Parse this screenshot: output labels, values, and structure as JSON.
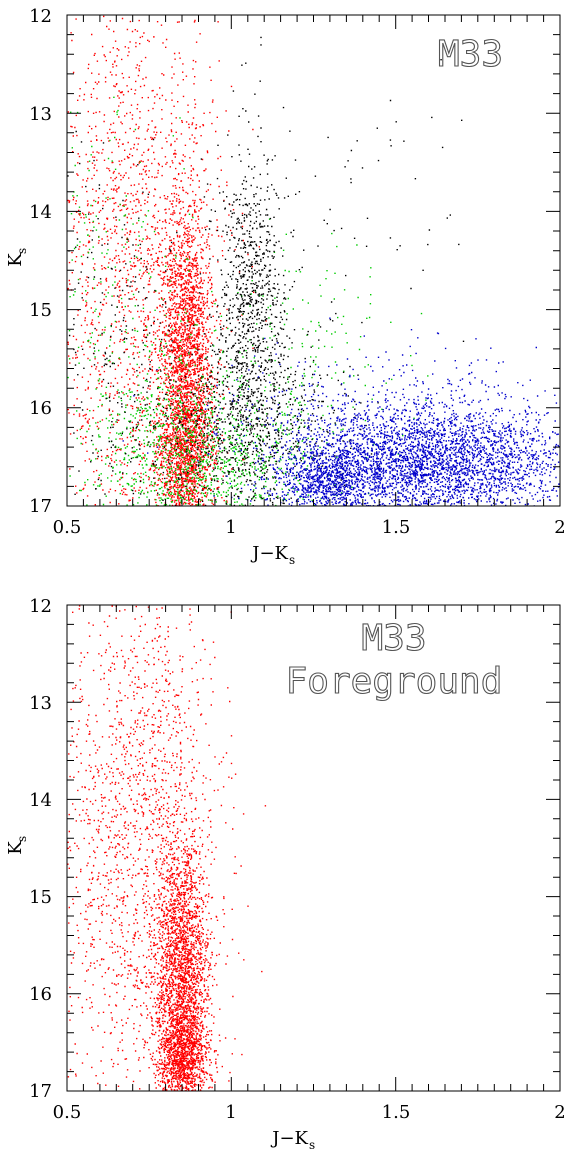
{
  "chart_data": [
    {
      "type": "scatter",
      "title": "",
      "xlabel": "J−K",
      "xlabel_sub": "s",
      "ylabel": "K",
      "ylabel_sub": "s",
      "xlim": [
        0.5,
        2
      ],
      "ylim": [
        17,
        12
      ],
      "y_inverted": true,
      "xticks": [
        "0.5",
        "1",
        "1.5",
        "2"
      ],
      "yticks": [
        "12",
        "13",
        "14",
        "15",
        "16",
        "17"
      ],
      "grid": false,
      "annotations": [
        "M33"
      ],
      "series": [
        {
          "color": "#ff0000",
          "populations": [
            {
              "x": 0.86,
              "y": 15.6,
              "sx": 0.04,
              "sy": 0.9,
              "n": 2600
            },
            {
              "x": 0.7,
              "y": 14.5,
              "sx": 0.13,
              "sy": 1.5,
              "n": 1700
            },
            {
              "x": 0.86,
              "y": 16.6,
              "sx": 0.05,
              "sy": 0.3,
              "n": 700
            }
          ]
        },
        {
          "color": "#00cc00",
          "populations": [
            {
              "x": 0.9,
              "y": 16.5,
              "sx": 0.15,
              "sy": 0.45,
              "n": 1200
            },
            {
              "x": 0.65,
              "y": 15.2,
              "sx": 0.12,
              "sy": 1.1,
              "n": 300
            },
            {
              "x": 1.2,
              "y": 15.9,
              "sx": 0.15,
              "sy": 0.8,
              "n": 250
            }
          ]
        },
        {
          "color": "#000000",
          "populations": [
            {
              "x": 1.06,
              "y": 14.9,
              "sx": 0.05,
              "sy": 0.75,
              "n": 800
            },
            {
              "x": 1.05,
              "y": 16.2,
              "sx": 0.14,
              "sy": 0.5,
              "n": 900
            },
            {
              "x": 0.65,
              "y": 15.5,
              "sx": 0.12,
              "sy": 1.0,
              "n": 250
            },
            {
              "x": 1.35,
              "y": 14.0,
              "sx": 0.18,
              "sy": 0.6,
              "n": 70
            }
          ]
        },
        {
          "color": "#0000cc",
          "populations": [
            {
              "x": 1.6,
              "y": 16.55,
              "sx": 0.22,
              "sy": 0.3,
              "n": 3400
            },
            {
              "x": 1.3,
              "y": 16.75,
              "sx": 0.08,
              "sy": 0.2,
              "n": 900
            },
            {
              "x": 1.5,
              "y": 16.1,
              "sx": 0.3,
              "sy": 0.4,
              "n": 400
            }
          ]
        }
      ]
    },
    {
      "type": "scatter",
      "title": "",
      "xlabel": "J−K",
      "xlabel_sub": "s",
      "ylabel": "K",
      "ylabel_sub": "s",
      "xlim": [
        0.5,
        2
      ],
      "ylim": [
        17,
        12
      ],
      "y_inverted": true,
      "xticks": [
        "0.5",
        "1",
        "1.5",
        "2"
      ],
      "yticks": [
        "12",
        "13",
        "14",
        "15",
        "16",
        "17"
      ],
      "grid": false,
      "annotations": [
        "M33",
        "Foreground"
      ],
      "series": [
        {
          "color": "#ff0000",
          "populations": [
            {
              "x": 0.85,
              "y": 15.9,
              "sx": 0.04,
              "sy": 0.75,
              "n": 2600
            },
            {
              "x": 0.72,
              "y": 14.4,
              "sx": 0.12,
              "sy": 1.5,
              "n": 1800
            },
            {
              "x": 0.85,
              "y": 16.7,
              "sx": 0.04,
              "sy": 0.25,
              "n": 800
            }
          ]
        }
      ]
    }
  ]
}
